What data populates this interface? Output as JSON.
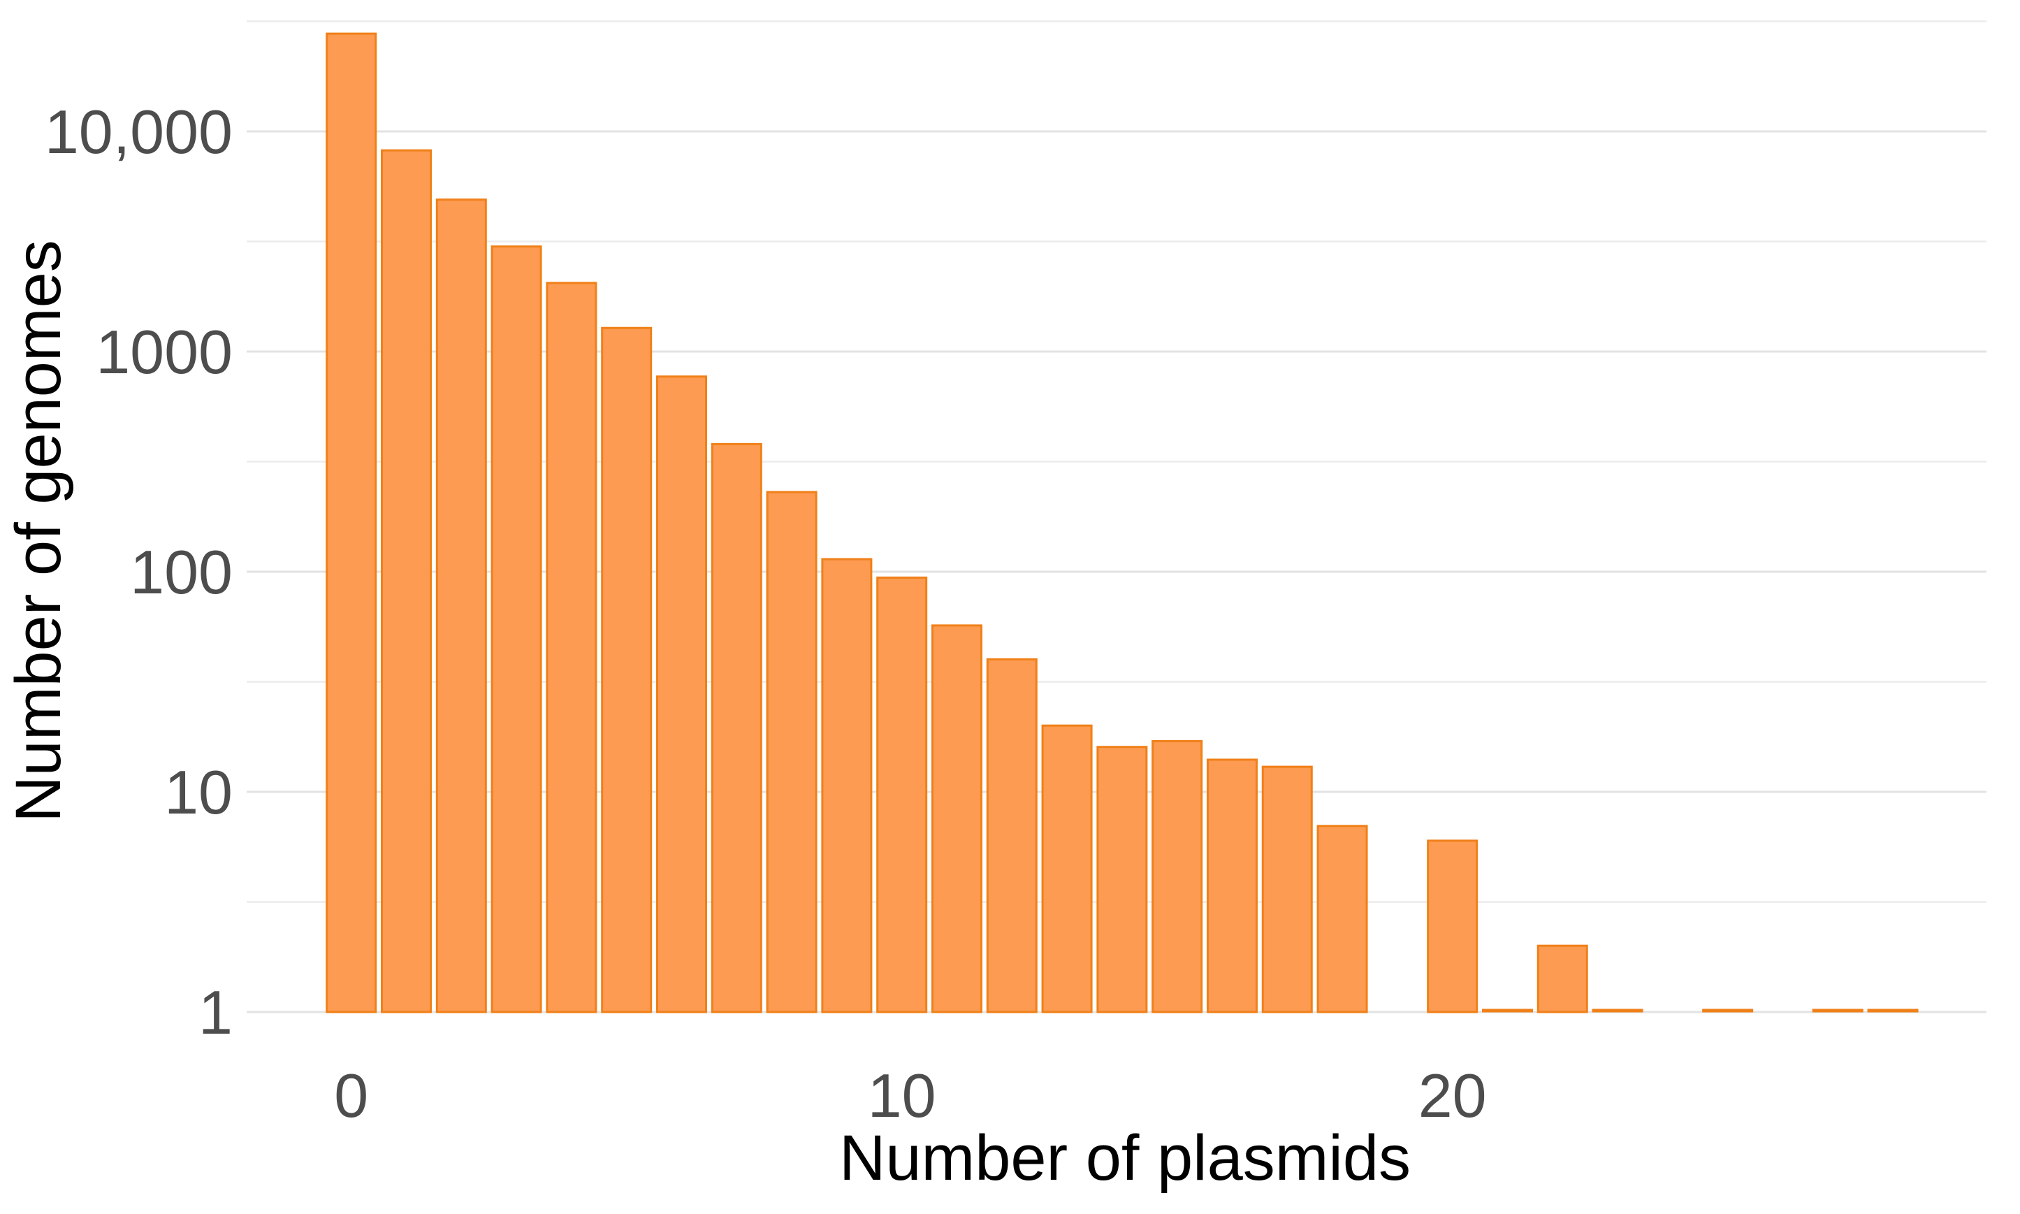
{
  "chart_data": {
    "type": "bar",
    "title": "",
    "xlabel": "Number of plasmids",
    "ylabel": "Number of genomes",
    "yscale": "log10",
    "x_values": [
      0,
      1,
      2,
      3,
      4,
      5,
      6,
      7,
      8,
      9,
      10,
      11,
      12,
      13,
      14,
      15,
      16,
      17,
      18,
      19,
      20,
      21,
      22,
      23,
      24,
      25,
      26,
      27,
      28
    ],
    "values": [
      27800,
      8200,
      4900,
      3000,
      2050,
      1280,
      770,
      380,
      230,
      114,
      94,
      57,
      40,
      20,
      16,
      17,
      14,
      13,
      7,
      0,
      6,
      1,
      2,
      1,
      0,
      1,
      0,
      1,
      1
    ],
    "xlim": [
      -1.9,
      29.7
    ],
    "ylim": [
      1,
      35000
    ],
    "xticks": [
      {
        "value": 0,
        "label": "0"
      },
      {
        "value": 10,
        "label": "10"
      },
      {
        "value": 20,
        "label": "20"
      }
    ],
    "yticks": [
      {
        "value": 1,
        "label": "1"
      },
      {
        "value": 10,
        "label": "10"
      },
      {
        "value": 100,
        "label": "100"
      },
      {
        "value": 1000,
        "label": "1000"
      },
      {
        "value": 10000,
        "label": "10,000"
      }
    ],
    "minor_gridlines_log10": [
      0.5,
      1.5,
      2.5,
      3.5,
      4.5
    ],
    "grid": "major and minor horizontal gridlines, no axis lines, no tick marks",
    "legend_position": "none",
    "bin_width": 1,
    "colors": {
      "bar_fill": "#FC9B51",
      "bar_stroke": "#F08019",
      "gridline_major": "#E3E3E3",
      "gridline_minor": "#ECECEC",
      "tick_text": "#4D4D4D",
      "axis_title_text": "#000000",
      "background": "#FFFFFF"
    }
  }
}
